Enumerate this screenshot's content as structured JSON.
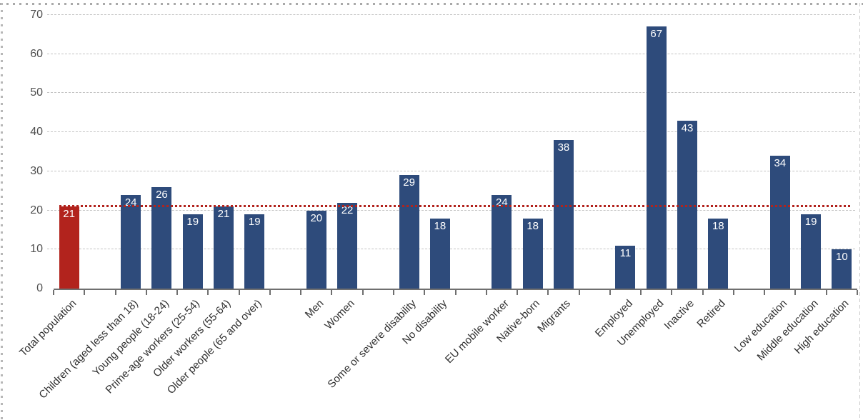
{
  "chart_data": {
    "type": "bar",
    "title": "",
    "xlabel": "",
    "ylabel": "",
    "ylim": [
      0,
      70
    ],
    "yticks": [
      0,
      10,
      20,
      30,
      40,
      50,
      60,
      70
    ],
    "grid": "horizontal-dashed",
    "legend": "none",
    "colors": {
      "bar_default": "#2e4b7b",
      "bar_highlight": "#b2231d",
      "reference_line": "#b2231d",
      "gridline": "#c3c3c3",
      "axis": "#6f6f6f"
    },
    "reference_line": {
      "value": 21
    },
    "groups": [
      {
        "name": "total",
        "bars": [
          {
            "label": "Total population",
            "value": 21,
            "highlight": true
          }
        ]
      },
      {
        "name": "age",
        "bars": [
          {
            "label": "Children (aged less than 18)",
            "value": 24
          },
          {
            "label": "Young people (18-24)",
            "value": 26
          },
          {
            "label": "Prime-age workers (25-54)",
            "value": 19
          },
          {
            "label": "Older workers (55-64)",
            "value": 21
          },
          {
            "label": "Older people (65 and over)",
            "value": 19
          }
        ]
      },
      {
        "name": "gender",
        "bars": [
          {
            "label": "Men",
            "value": 20
          },
          {
            "label": "Women",
            "value": 22
          }
        ]
      },
      {
        "name": "disability",
        "bars": [
          {
            "label": "Some or severe disability",
            "value": 29
          },
          {
            "label": "No disability",
            "value": 18
          }
        ]
      },
      {
        "name": "migration",
        "bars": [
          {
            "label": "EU mobile worker",
            "value": 24
          },
          {
            "label": "Native-born",
            "value": 18
          },
          {
            "label": "Migrants",
            "value": 38
          }
        ]
      },
      {
        "name": "employment",
        "bars": [
          {
            "label": "Employed",
            "value": 11
          },
          {
            "label": "Unemployed",
            "value": 67
          },
          {
            "label": "Inactive",
            "value": 43
          },
          {
            "label": "Retired",
            "value": 18
          }
        ]
      },
      {
        "name": "education",
        "bars": [
          {
            "label": "Low education",
            "value": 34
          },
          {
            "label": "Middle education",
            "value": 19
          },
          {
            "label": "High education",
            "value": 10
          }
        ]
      }
    ]
  }
}
